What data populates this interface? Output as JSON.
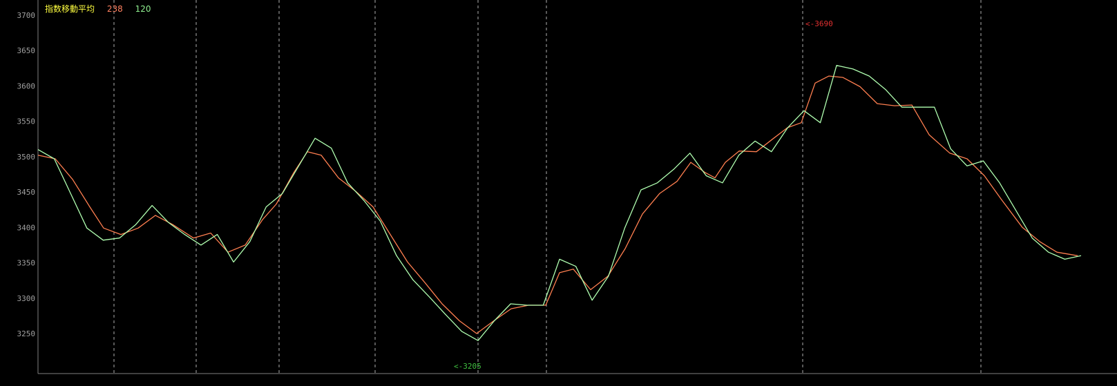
{
  "chart_data": {
    "type": "line",
    "title": "指数移動平均",
    "ylim": [
      3200,
      3720
    ],
    "yticks": [
      3250,
      3300,
      3350,
      3400,
      3450,
      3500,
      3550,
      3600,
      3650,
      3700
    ],
    "grid": {
      "vertical": true,
      "horizontal": false
    },
    "legend_placement": "top-left",
    "series": [
      {
        "name": "238",
        "color": "#ff7f50",
        "values": [
          3502,
          3497,
          3468,
          3429,
          3399,
          3390,
          3399,
          3417,
          3404,
          3385,
          3392,
          3365,
          3375,
          3411,
          3433,
          3477,
          3507,
          3502,
          3470,
          3451,
          3429,
          3390,
          3351,
          3322,
          3292,
          3268,
          3250,
          3268,
          3285,
          3290,
          3290,
          3336,
          3341,
          3312,
          3331,
          3370,
          3419,
          3448,
          3465,
          3492,
          3478,
          3470,
          3492,
          3508,
          3507,
          3526,
          3541,
          3548,
          3604,
          3614,
          3612,
          3599,
          3575,
          3572,
          3573,
          3531,
          3505,
          3497,
          3473,
          3439,
          3400,
          3380,
          3365,
          3360
        ]
      },
      {
        "name": "120",
        "color": "#b0ffb0",
        "values": [
          3510,
          3497,
          3448,
          3399,
          3382,
          3385,
          3404,
          3431,
          3407,
          3390,
          3375,
          3390,
          3351,
          3380,
          3429,
          3448,
          3487,
          3526,
          3512,
          3463,
          3438,
          3409,
          3360,
          3326,
          3302,
          3277,
          3253,
          3240,
          3268,
          3292,
          3290,
          3290,
          3355,
          3345,
          3297,
          3331,
          3399,
          3453,
          3463,
          3482,
          3505,
          3473,
          3463,
          3502,
          3522,
          3507,
          3541,
          3565,
          3548,
          3629,
          3624,
          3614,
          3595,
          3570,
          3570,
          3570,
          3511,
          3487,
          3494,
          3463,
          3424,
          3385,
          3365,
          3355,
          3360
        ]
      }
    ],
    "annotations": [
      {
        "text": "<-3690",
        "value": 3690,
        "color": "#e03030"
      },
      {
        "text": "<-3205",
        "value": 3205,
        "color": "#40c040"
      }
    ]
  }
}
